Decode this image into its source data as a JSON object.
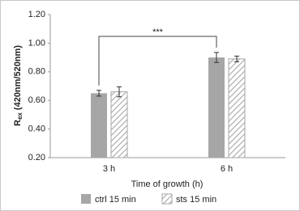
{
  "chart_data": {
    "type": "bar",
    "y_label": {
      "main": "R",
      "sub": "ex",
      "rest": " (420nm/520nm)"
    },
    "x_label": "Time of growth (h)",
    "annotation": "***",
    "categories": [
      "3 h",
      "6 h"
    ],
    "series": [
      {
        "name": "ctrl 15 min",
        "color": "#a6a6a6",
        "pattern": "solid",
        "values": [
          0.65,
          0.9
        ],
        "errors": [
          0.02,
          0.035
        ]
      },
      {
        "name": "sts 15 min",
        "color": "#a6a6a6",
        "pattern": "hatch",
        "values": [
          0.66,
          0.89
        ],
        "errors": [
          0.035,
          0.02
        ]
      }
    ],
    "ylim": [
      0.2,
      1.2
    ],
    "yticks": [
      {
        "value": 0.2,
        "label": "0.20"
      },
      {
        "value": 0.4,
        "label": "0.40"
      },
      {
        "value": 0.6,
        "label": "0.60"
      },
      {
        "value": 0.8,
        "label": "0.80"
      },
      {
        "value": 1.0,
        "label": "1.00"
      },
      {
        "value": 1.2,
        "label": "1.20"
      }
    ],
    "grid": false
  }
}
